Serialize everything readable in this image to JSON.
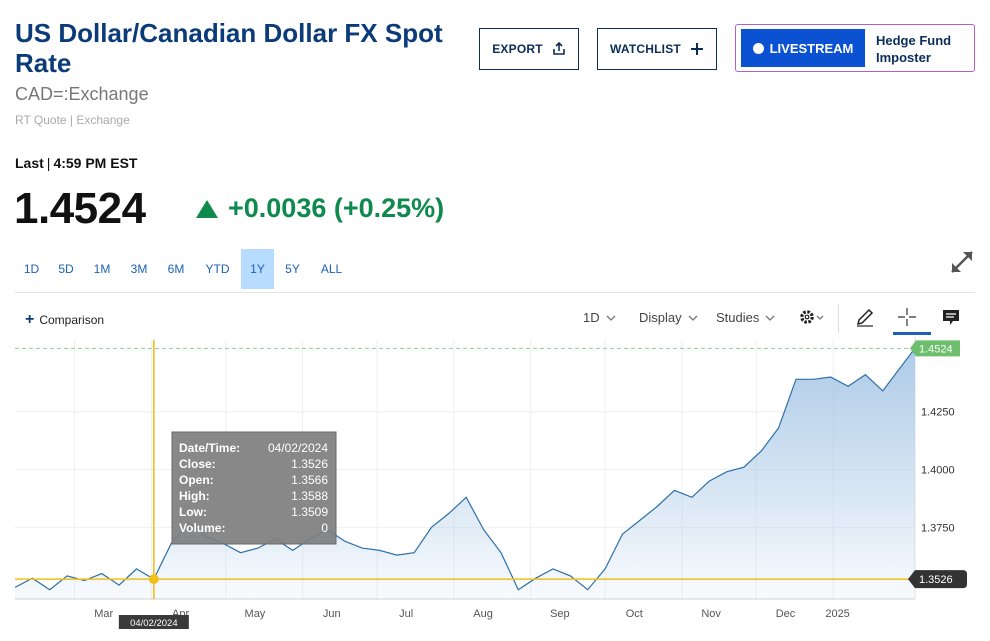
{
  "header": {
    "title": "US Dollar/Canadian Dollar FX Spot Rate",
    "symbol": "CAD=:Exchange",
    "quote_source": "RT Quote | Exchange",
    "export_label": "EXPORT",
    "watchlist_label": "WATCHLIST",
    "livestream_label": "LIVESTREAM",
    "livestream_show": "Hedge Fund Imposter"
  },
  "quote": {
    "last_label": "Last",
    "last_time": "4:59 PM EST",
    "price": "1.4524",
    "change": "+0.0036 (+0.25%)",
    "change_color": "#0f8a4e"
  },
  "range_tabs": [
    {
      "label": "1D",
      "active": false
    },
    {
      "label": "5D",
      "active": false
    },
    {
      "label": "1M",
      "active": false
    },
    {
      "label": "3M",
      "active": false
    },
    {
      "label": "6M",
      "active": false
    },
    {
      "label": "YTD",
      "active": false
    },
    {
      "label": "1Y",
      "active": true
    },
    {
      "label": "5Y",
      "active": false
    },
    {
      "label": "ALL",
      "active": false
    }
  ],
  "toolbar": {
    "comparison_label": "Comparison",
    "interval_label": "1D",
    "display_label": "Display",
    "studies_label": "Studies",
    "icons": [
      "gear-icon",
      "pencil-icon",
      "crosshair-icon",
      "comment-icon"
    ]
  },
  "chart_data": {
    "type": "area",
    "series": [
      {
        "x": [
          "2024-02-06",
          "2024-02-13",
          "2024-02-20",
          "2024-02-27",
          "2024-03-05",
          "2024-03-12",
          "2024-03-19",
          "2024-03-26",
          "2024-04-02",
          "2024-04-09",
          "2024-04-16",
          "2024-04-23",
          "2024-04-30",
          "2024-05-07",
          "2024-05-14",
          "2024-05-21",
          "2024-05-28",
          "2024-06-04",
          "2024-06-11",
          "2024-06-18",
          "2024-06-25",
          "2024-07-02",
          "2024-07-09",
          "2024-07-16",
          "2024-07-23",
          "2024-07-30",
          "2024-08-06",
          "2024-08-13",
          "2024-08-20",
          "2024-08-27",
          "2024-09-03",
          "2024-09-10",
          "2024-09-17",
          "2024-09-24",
          "2024-10-01",
          "2024-10-08",
          "2024-10-15",
          "2024-10-22",
          "2024-10-29",
          "2024-11-05",
          "2024-11-12",
          "2024-11-19",
          "2024-11-26",
          "2024-12-03",
          "2024-12-10",
          "2024-12-17",
          "2024-12-24",
          "2024-12-31",
          "2025-01-07",
          "2025-01-14",
          "2025-01-21",
          "2025-01-28",
          "2025-02-03"
        ],
        "values": [
          1.349,
          1.353,
          1.348,
          1.354,
          1.352,
          1.355,
          1.35,
          1.357,
          1.3526,
          1.368,
          1.377,
          1.371,
          1.368,
          1.364,
          1.366,
          1.37,
          1.365,
          1.37,
          1.374,
          1.369,
          1.366,
          1.365,
          1.363,
          1.364,
          1.375,
          1.381,
          1.388,
          1.374,
          1.364,
          1.348,
          1.353,
          1.357,
          1.354,
          1.348,
          1.357,
          1.372,
          1.378,
          1.384,
          1.391,
          1.388,
          1.395,
          1.399,
          1.401,
          1.408,
          1.418,
          1.439,
          1.439,
          1.44,
          1.436,
          1.441,
          1.434,
          1.444,
          1.4524
        ]
      }
    ],
    "x_tick_labels": [
      "Mar",
      "Apr",
      "May",
      "Jun",
      "Jul",
      "Aug",
      "Sep",
      "Oct",
      "Nov",
      "Dec",
      "2025"
    ],
    "y_tick_labels": [
      "1.4250",
      "1.4000",
      "1.3750"
    ],
    "ylim": [
      1.344,
      1.456
    ],
    "last_value_label": "1.4524",
    "crosshair_value_label": "1.3526",
    "crosshair_date_label": "04/02/2024",
    "tooltip": {
      "rows": [
        {
          "label": "Date/Time:",
          "value": "04/02/2024"
        },
        {
          "label": "Close:",
          "value": "1.3526"
        },
        {
          "label": "Open:",
          "value": "1.3566"
        },
        {
          "label": "High:",
          "value": "1.3588"
        },
        {
          "label": "Low:",
          "value": "1.3509"
        },
        {
          "label": "Volume:",
          "value": "0"
        }
      ]
    },
    "line_color": "#2d6fa8",
    "fill_color": "#a9c8e6",
    "crosshair_color": "#f0bf1a",
    "last_badge_color": "#6dbf6d",
    "grid": true
  }
}
